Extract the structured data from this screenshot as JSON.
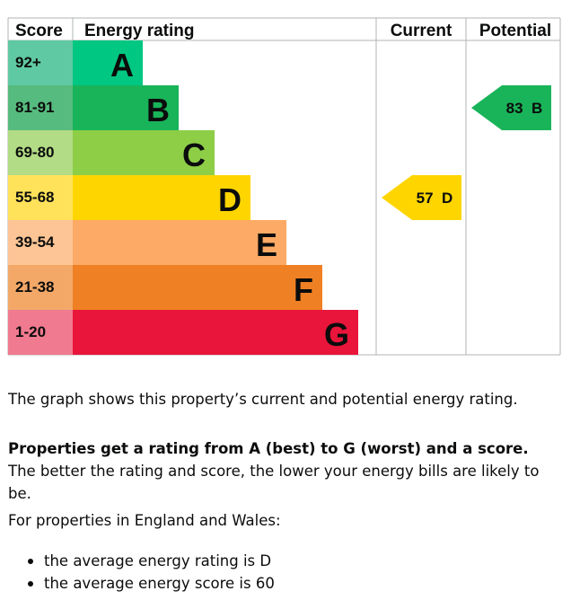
{
  "chart_data": {
    "type": "bar",
    "headers": {
      "score": "Score",
      "rating": "Energy rating",
      "current": "Current",
      "potential": "Potential"
    },
    "bands": [
      {
        "range": "92+",
        "letter": "A",
        "color": "#00c781",
        "score_color": "#5fc9a3",
        "text_color": "#0b0c0c"
      },
      {
        "range": "81-91",
        "letter": "B",
        "color": "#19b459",
        "score_color": "#56bb7e",
        "text_color": "#0b0c0c"
      },
      {
        "range": "69-80",
        "letter": "C",
        "color": "#8dce46",
        "score_color": "#b2dc85",
        "text_color": "#0b0c0c"
      },
      {
        "range": "55-68",
        "letter": "D",
        "color": "#ffd500",
        "score_color": "#ffe25a",
        "text_color": "#0b0c0c"
      },
      {
        "range": "39-54",
        "letter": "E",
        "color": "#fcaa65",
        "score_color": "#fdc596",
        "text_color": "#0b0c0c"
      },
      {
        "range": "21-38",
        "letter": "F",
        "color": "#ef8023",
        "score_color": "#f3a868",
        "text_color": "#0b0c0c"
      },
      {
        "range": "1-20",
        "letter": "G",
        "color": "#e9153b",
        "score_color": "#f07a8f",
        "text_color": "#0b0c0c"
      }
    ],
    "current": {
      "score": 57,
      "letter": "D",
      "label": "57  D",
      "color": "#ffd500"
    },
    "potential": {
      "score": 83,
      "letter": "B",
      "label": "83  B",
      "color": "#19b459"
    }
  },
  "description": {
    "graph_note": "The graph shows this property’s current and potential energy rating.",
    "rating_bold": "Properties get a rating from A (best) to G (worst) and a score.",
    "rating_rest": " The better the rating and score, the lower your energy bills are likely to be.",
    "region_intro": "For properties in England and Wales:",
    "average_rating": "the average energy rating is D",
    "average_score": "the average energy score is 60"
  }
}
